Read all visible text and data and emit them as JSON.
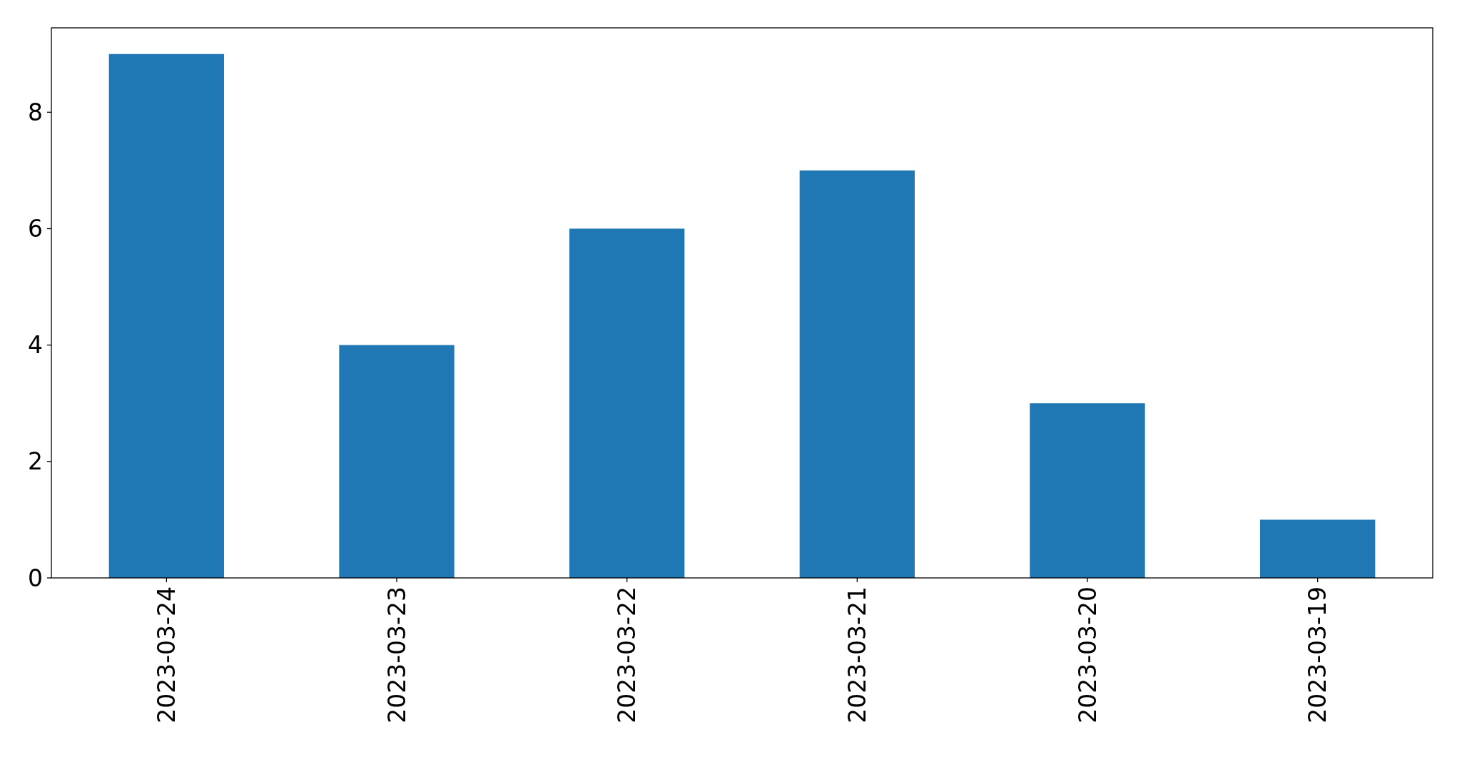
{
  "chart_data": {
    "type": "bar",
    "categories": [
      "2023-03-24",
      "2023-03-23",
      "2023-03-22",
      "2023-03-21",
      "2023-03-20",
      "2023-03-19"
    ],
    "values": [
      9,
      4,
      6,
      7,
      3,
      1
    ],
    "color": "#1f77b4",
    "ylim": [
      0,
      9.45
    ],
    "yticks": [
      0,
      2,
      4,
      6,
      8
    ]
  }
}
